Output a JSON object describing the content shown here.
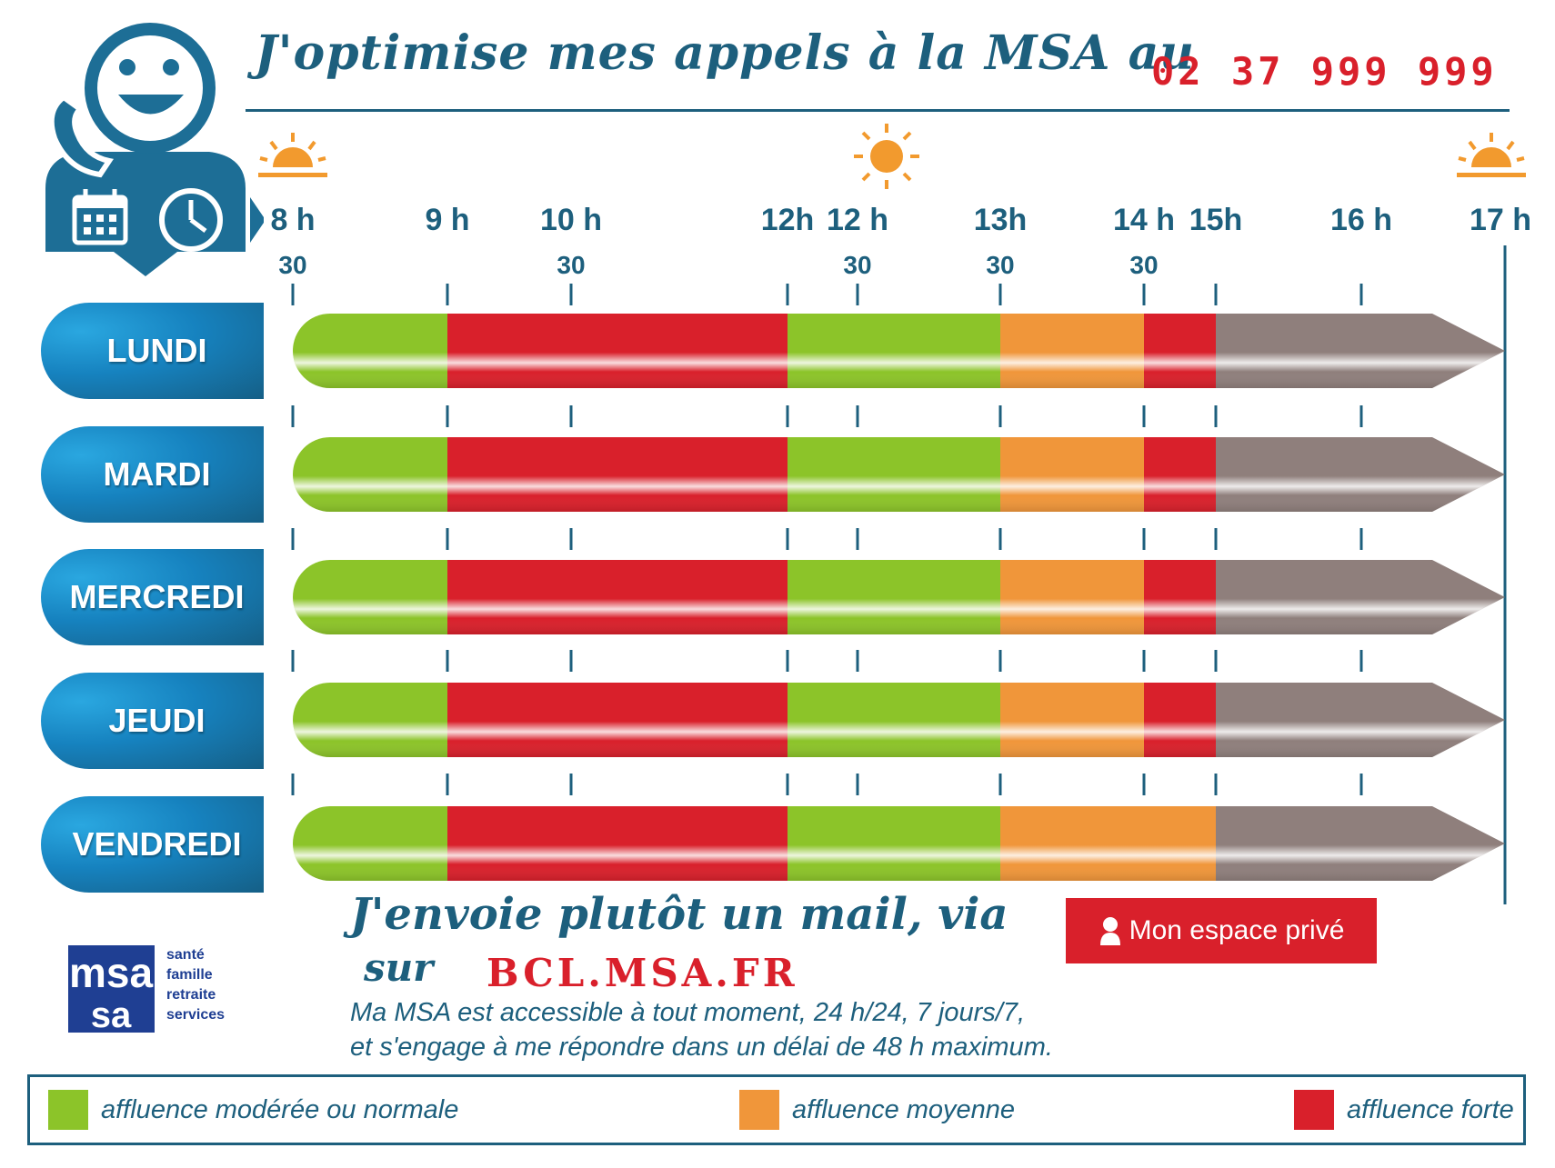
{
  "header": {
    "title": "J'optimise mes appels à la MSA au",
    "phone": "02 37 999 999"
  },
  "footer": {
    "mail_line": "J'envoie plutôt un mail, via",
    "via": "sur",
    "url": "BCL.MSA.FR",
    "espace_button": "Mon espace privé",
    "note_line1": "Ma MSA est accessible à tout moment, 24 h/24, 7 jours/7,",
    "note_line2": "et s'engage à me répondre dans un délai de 48 h maximum.",
    "logo_letters": "msa",
    "logo_words": [
      "santé",
      "famille",
      "retraite",
      "services"
    ]
  },
  "colors": {
    "brand_blue": "#1d5f7d",
    "red": "#d9202b",
    "green": "#8cc429",
    "orange": "#f0963a",
    "closed_grey": "#8f7f7c",
    "sun": "#f29a2e"
  },
  "icons": [
    "agent-mascot-icon",
    "phone-icon",
    "calendar-icon",
    "clock-icon",
    "sunrise-icon",
    "sun-icon",
    "sunset-icon",
    "user-icon"
  ],
  "chart_data": {
    "type": "timeline",
    "time_range": [
      "08:30",
      "17:00"
    ],
    "ticks": [
      {
        "time": "08:30",
        "hour_label": "8 h",
        "min_label": "30"
      },
      {
        "time": "09:00",
        "hour_label": "9 h",
        "min_label": ""
      },
      {
        "time": "10:30",
        "hour_label": "10 h",
        "min_label": "30"
      },
      {
        "time": "12:00",
        "hour_label": "12h",
        "min_label": ""
      },
      {
        "time": "12:30",
        "hour_label": "12 h",
        "min_label": "30"
      },
      {
        "time": "13:30",
        "hour_label": "13h",
        "min_label": "30"
      },
      {
        "time": "14:30",
        "hour_label": "14 h",
        "min_label": "30"
      },
      {
        "time": "15:00",
        "hour_label": "15h",
        "min_label": ""
      },
      {
        "time": "16:00",
        "hour_label": "16 h",
        "min_label": ""
      },
      {
        "time": "17:00",
        "hour_label": "17 h",
        "min_label": ""
      }
    ],
    "legend": [
      {
        "level": "normal",
        "label": "affluence modérée ou normale",
        "color": "#8cc429"
      },
      {
        "level": "moyenne",
        "label": "affluence moyenne",
        "color": "#f0963a"
      },
      {
        "level": "forte",
        "label": "affluence forte",
        "color": "#d9202b"
      }
    ],
    "days": [
      {
        "day": "LUNDI",
        "segments": [
          {
            "start": "08:30",
            "end": "09:00",
            "level": "normal"
          },
          {
            "start": "09:00",
            "end": "12:00",
            "level": "forte"
          },
          {
            "start": "12:00",
            "end": "13:30",
            "level": "normal"
          },
          {
            "start": "13:30",
            "end": "14:30",
            "level": "moyenne"
          },
          {
            "start": "14:30",
            "end": "15:00",
            "level": "forte"
          },
          {
            "start": "15:00",
            "end": "17:00",
            "level": "fermé"
          }
        ]
      },
      {
        "day": "MARDI",
        "segments": [
          {
            "start": "08:30",
            "end": "09:00",
            "level": "normal"
          },
          {
            "start": "09:00",
            "end": "12:00",
            "level": "forte"
          },
          {
            "start": "12:00",
            "end": "13:30",
            "level": "normal"
          },
          {
            "start": "13:30",
            "end": "14:30",
            "level": "moyenne"
          },
          {
            "start": "14:30",
            "end": "15:00",
            "level": "forte"
          },
          {
            "start": "15:00",
            "end": "17:00",
            "level": "fermé"
          }
        ]
      },
      {
        "day": "MERCREDI",
        "segments": [
          {
            "start": "08:30",
            "end": "09:00",
            "level": "normal"
          },
          {
            "start": "09:00",
            "end": "12:00",
            "level": "forte"
          },
          {
            "start": "12:00",
            "end": "13:30",
            "level": "normal"
          },
          {
            "start": "13:30",
            "end": "14:30",
            "level": "moyenne"
          },
          {
            "start": "14:30",
            "end": "15:00",
            "level": "forte"
          },
          {
            "start": "15:00",
            "end": "17:00",
            "level": "fermé"
          }
        ]
      },
      {
        "day": "JEUDI",
        "segments": [
          {
            "start": "08:30",
            "end": "09:00",
            "level": "normal"
          },
          {
            "start": "09:00",
            "end": "12:00",
            "level": "forte"
          },
          {
            "start": "12:00",
            "end": "13:30",
            "level": "normal"
          },
          {
            "start": "13:30",
            "end": "14:30",
            "level": "moyenne"
          },
          {
            "start": "14:30",
            "end": "15:00",
            "level": "forte"
          },
          {
            "start": "15:00",
            "end": "17:00",
            "level": "fermé"
          }
        ]
      },
      {
        "day": "VENDREDI",
        "segments": [
          {
            "start": "08:30",
            "end": "09:00",
            "level": "normal"
          },
          {
            "start": "09:00",
            "end": "12:00",
            "level": "forte"
          },
          {
            "start": "12:00",
            "end": "13:30",
            "level": "normal"
          },
          {
            "start": "13:30",
            "end": "15:00",
            "level": "moyenne"
          },
          {
            "start": "15:00",
            "end": "17:00",
            "level": "fermé"
          }
        ]
      }
    ]
  }
}
